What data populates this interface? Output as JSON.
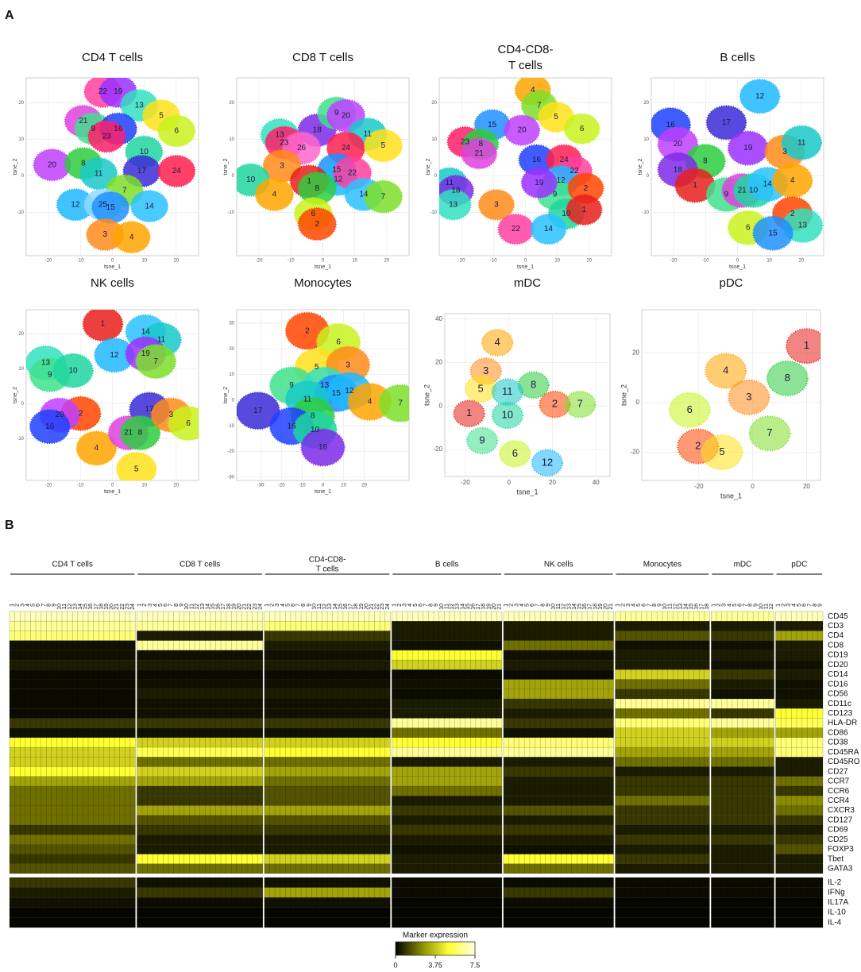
{
  "panel_labels": [
    "A",
    "B"
  ],
  "chart_data": [
    {
      "type": "scatter",
      "title": [
        "CD4 T cells"
      ],
      "x_label": "tsne_1",
      "y_label": "tsne_2",
      "xlim": [
        -26,
        26
      ],
      "ylim": [
        -21,
        26
      ],
      "xticks": [
        -20,
        -10,
        0,
        10,
        20
      ],
      "yticks": [
        -10,
        0,
        10,
        20
      ],
      "point_labels": [
        22,
        19,
        13,
        5,
        6,
        21,
        9,
        16,
        23,
        20,
        8,
        10,
        11,
        17,
        24,
        7,
        12,
        25,
        15,
        14,
        3,
        4
      ],
      "x": [
        -3,
        1.8,
        8.4,
        15.3,
        20.1,
        -9.1,
        -6,
        1.8,
        -1.8,
        -18.9,
        -9.1,
        9.9,
        -4.3,
        9.2,
        20.1,
        3.8,
        -11.6,
        -3,
        -0.6,
        11.6,
        -2.3,
        6
      ],
      "values": [
        23.1,
        23.1,
        19.3,
        16.5,
        12.3,
        15,
        12.9,
        12.9,
        10.8,
        3,
        3.4,
        6.6,
        0.6,
        1.3,
        1.3,
        -4,
        -7.9,
        -7.9,
        -8.7,
        -8.3,
        -16.1,
        -16.8
      ]
    },
    {
      "type": "scatter",
      "title": [
        "CD8 T cells"
      ],
      "x_label": "tsne_1",
      "y_label": "tsne_2",
      "xlim": [
        -26,
        26
      ],
      "ylim": [
        -21,
        26
      ],
      "xticks": [
        -20,
        -10,
        0,
        10,
        20
      ],
      "yticks": [
        -10,
        0,
        10,
        20
      ],
      "point_labels": [
        18,
        9,
        20,
        11,
        13,
        23,
        26,
        24,
        5,
        3,
        15,
        12,
        22,
        10,
        1,
        8,
        4,
        14,
        7,
        6,
        2
      ],
      "x": [
        -1.8,
        4.3,
        7.2,
        14,
        -13.5,
        -12.1,
        -6.7,
        7.2,
        18.9,
        -12.8,
        4.3,
        4.8,
        9.2,
        -22.6,
        -4.3,
        -1.8,
        -15.2,
        12.8,
        18.9,
        -3,
        -1.8
      ],
      "values": [
        12.5,
        17.2,
        16.5,
        11.4,
        11.2,
        9.1,
        7.6,
        7.6,
        8.3,
        2.7,
        1.7,
        -0.9,
        0.8,
        -1.1,
        -1.5,
        -3.4,
        -5.1,
        -5.1,
        -5.7,
        -10.4,
        -13.2
      ]
    },
    {
      "type": "scatter",
      "title": [
        "CD4-CD8-",
        "T cells"
      ],
      "x_label": "tsne_1",
      "y_label": "tsne_2",
      "xlim": [
        -26,
        26
      ],
      "ylim": [
        -21,
        26
      ],
      "xticks": [
        -20,
        -10,
        0,
        10,
        20
      ],
      "yticks": [
        -10,
        0,
        10,
        20
      ],
      "point_labels": [
        4,
        7,
        5,
        6,
        15,
        20,
        23,
        8,
        21,
        16,
        24,
        22,
        12,
        11,
        18,
        9,
        2,
        19,
        13,
        3,
        10,
        1,
        22,
        14
      ],
      "x": [
        2.3,
        4.3,
        9.6,
        17.7,
        -10.4,
        -1.1,
        -18.9,
        -14,
        -14.5,
        3.5,
        12.1,
        15.3,
        11.1,
        -23.8,
        -21.8,
        9.2,
        18.9,
        4.3,
        -22.6,
        -9.1,
        12.8,
        18.4,
        -3,
        7.2
      ],
      "values": [
        23.5,
        19.3,
        16.1,
        12.9,
        14,
        12.5,
        9.3,
        8.7,
        6.1,
        4.4,
        4.4,
        1.3,
        -1.3,
        -1.9,
        -4,
        -5.1,
        -3.4,
        -1.9,
        -7.9,
        -7.9,
        -10.4,
        -9.3,
        -14.6,
        -14.6
      ]
    },
    {
      "type": "scatter",
      "title": [
        "B cells"
      ],
      "x_label": "tsne_1",
      "y_label": "tsne_2",
      "xlim": [
        -26,
        26
      ],
      "ylim": [
        -21,
        26
      ],
      "xticks": [
        -20,
        -10,
        0,
        10,
        20
      ],
      "yticks": [
        -10,
        0,
        10,
        20
      ],
      "point_labels": [
        12,
        16,
        17,
        19,
        3,
        11,
        20,
        8,
        18,
        1,
        9,
        21,
        10,
        14,
        4,
        6,
        2,
        13,
        15
      ],
      "x": [
        7,
        -21,
        -3.5,
        3.3,
        14.8,
        20.1,
        -18.7,
        -10.1,
        -18.7,
        -13.3,
        -3.5,
        1.4,
        5,
        9.4,
        17.2,
        3.3,
        17.2,
        20.4,
        11.1
      ],
      "values": [
        21.8,
        14,
        14.6,
        7.6,
        6.6,
        9.1,
        8.7,
        4,
        1.7,
        -2.6,
        -5.1,
        -4,
        -4,
        -2.3,
        -1.3,
        -14.2,
        -10.4,
        -13.6,
        -15.7
      ]
    },
    {
      "type": "scatter",
      "title": [
        "NK cells"
      ],
      "x_label": "tsne_1",
      "y_label": "tsne_2",
      "xlim": [
        -26,
        26
      ],
      "ylim": [
        -21,
        26
      ],
      "xticks": [
        -20,
        -10,
        0,
        10,
        20
      ],
      "yticks": [
        -10,
        0,
        10,
        20
      ],
      "point_labels": [
        1,
        14,
        11,
        12,
        19,
        7,
        13,
        9,
        10,
        2,
        17,
        20,
        16,
        4,
        21,
        8,
        3,
        6,
        5
      ],
      "x": [
        -3,
        10.4,
        15.3,
        0.6,
        10.4,
        13.6,
        -20.9,
        -19.6,
        -12.3,
        -9.9,
        11.6,
        -16.5,
        -19.6,
        -5,
        5,
        8.7,
        18.4,
        23.8,
        7.5
      ],
      "values": [
        22.8,
        20.6,
        18.3,
        13.9,
        14.3,
        12.1,
        11.7,
        8.3,
        9.5,
        -2.8,
        -1.6,
        -3.2,
        -6.5,
        -12.7,
        -8.3,
        -8.3,
        -3.2,
        -5.6,
        -18.7
      ]
    },
    {
      "type": "scatter",
      "title": [
        "Monocytes"
      ],
      "x_label": "tsne_1",
      "y_label": "tsne_2",
      "xlim": [
        -40,
        40
      ],
      "ylim": [
        -30,
        34
      ],
      "xticks": [
        -30,
        -20,
        -10,
        0,
        10,
        20
      ],
      "yticks": [
        -30,
        -20,
        -10,
        0,
        10,
        20,
        30
      ],
      "point_labels": [
        2,
        6,
        5,
        3,
        9,
        13,
        15,
        12,
        4,
        7,
        17,
        11,
        8,
        16,
        10,
        18
      ],
      "x": [
        -7.5,
        7.5,
        -3,
        12.1,
        -15.1,
        0.8,
        6.4,
        12.8,
        22.6,
        37.4,
        -31.3,
        -7.5,
        -4.9,
        -15.1,
        -3.8,
        0
      ],
      "values": [
        27,
        22.6,
        12.8,
        13.7,
        5.7,
        5.7,
        2.7,
        3.6,
        -0.6,
        -1.2,
        -4.1,
        0.3,
        -6.2,
        -10.1,
        -11.5,
        -18.4
      ]
    },
    {
      "type": "scatter",
      "title": [
        "mDC"
      ],
      "x_label": "tsne_1",
      "y_label": "tsne_2",
      "xlim": [
        -28,
        45
      ],
      "ylim": [
        -31,
        41
      ],
      "xticks": [
        -20,
        0,
        20,
        40
      ],
      "yticks": [
        -20,
        0,
        20,
        40
      ],
      "point_labels": [
        4,
        3,
        5,
        8,
        11,
        10,
        1,
        2,
        7,
        9,
        6,
        12
      ],
      "x": [
        -5.3,
        -10.6,
        -13,
        11.3,
        -0.7,
        -0.7,
        -18.3,
        21.1,
        32.7,
        -12.3,
        2.8,
        17.6
      ],
      "values": [
        29.1,
        16,
        7.8,
        9.6,
        6.4,
        -4.3,
        -3.5,
        0.7,
        0.7,
        -16,
        -22,
        -26.2
      ]
    },
    {
      "type": "scatter",
      "title": [
        "pDC"
      ],
      "x_label": "tsne_1",
      "y_label": "tsne_2",
      "xlim": [
        -40,
        24
      ],
      "ylim": [
        -30,
        36
      ],
      "xticks": [
        -20,
        0,
        20
      ],
      "yticks": [
        -20,
        0,
        20
      ],
      "point_labels": [
        1,
        8,
        4,
        3,
        6,
        7,
        2,
        5
      ],
      "x": [
        20,
        12.9,
        -10,
        -1.4,
        -23.4,
        6.3,
        -20.3,
        -11.4
      ],
      "values": [
        22.7,
        9.7,
        12.7,
        2.1,
        -3,
        -12.4,
        -17.6,
        -20
      ]
    },
    {
      "type": "heatmap",
      "groups": [
        {
          "name": [
            "CD4 T cells"
          ],
          "columns": [
            1,
            2,
            3,
            4,
            5,
            6,
            7,
            8,
            9,
            10,
            11,
            12,
            13,
            14,
            15,
            16,
            17,
            18,
            19,
            20,
            21,
            22,
            23,
            24
          ]
        },
        {
          "name": [
            "CD8 T cells"
          ],
          "columns": [
            1,
            2,
            3,
            4,
            5,
            6,
            7,
            8,
            9,
            10,
            11,
            12,
            13,
            14,
            15,
            16,
            17,
            18,
            19,
            20,
            21,
            22,
            23,
            24
          ]
        },
        {
          "name": [
            "CD4-CD8-",
            "T cells"
          ],
          "columns": [
            1,
            2,
            3,
            4,
            5,
            6,
            7,
            8,
            9,
            10,
            11,
            12,
            13,
            14,
            15,
            16,
            17,
            18,
            19,
            20,
            21,
            22,
            23,
            24
          ]
        },
        {
          "name": [
            "B cells"
          ],
          "columns": [
            1,
            2,
            3,
            4,
            5,
            6,
            7,
            8,
            9,
            10,
            11,
            12,
            13,
            14,
            15,
            16,
            17,
            18,
            19,
            20,
            21
          ]
        },
        {
          "name": [
            "NK cells"
          ],
          "columns": [
            1,
            2,
            3,
            4,
            5,
            6,
            7,
            8,
            9,
            10,
            11,
            12,
            13,
            14,
            15,
            16,
            17,
            18,
            19,
            20,
            21
          ]
        },
        {
          "name": [
            "Monocytes"
          ],
          "columns": [
            1,
            2,
            3,
            4,
            5,
            6,
            7,
            8,
            9,
            10,
            11,
            12,
            13,
            14,
            15,
            16,
            17,
            18
          ]
        },
        {
          "name": [
            "mDC"
          ],
          "columns": [
            1,
            2,
            3,
            4,
            5,
            6,
            7,
            8,
            9,
            10,
            11,
            12
          ]
        },
        {
          "name": [
            "pDC"
          ],
          "columns": [
            1,
            2,
            3,
            4,
            5,
            6,
            7,
            8,
            9
          ]
        }
      ],
      "sections": [
        {
          "rows": [
            "CD45",
            "CD3",
            "CD4",
            "CD8",
            "CD19",
            "CD20",
            "CD14",
            "CD16",
            "CD56",
            "CD11c",
            "CD123",
            "HLA-DR",
            "CD86",
            "CD38",
            "CD45RA",
            "CD45RO",
            "CD27",
            "CCR7",
            "CCR6",
            "CCR4",
            "CXCR3",
            "CD127",
            "CD69",
            "CD25",
            "FOXP3",
            "Tbet",
            "GATA3"
          ],
          "values": [
            [
              7,
              7,
              7,
              7,
              7,
              6.5,
              6.5,
              7
            ],
            [
              6.5,
              6.5,
              6,
              0.5,
              0.5,
              0.5,
              0.5,
              0.5
            ],
            [
              6,
              0.5,
              1,
              0.5,
              0.5,
              1.5,
              1,
              3
            ],
            [
              0.3,
              6.5,
              0.5,
              0.3,
              2,
              0.3,
              0.3,
              0.5
            ],
            [
              0.3,
              0.3,
              0.3,
              5,
              0.3,
              0.5,
              0.5,
              0.5
            ],
            [
              0.5,
              0.5,
              0.5,
              4,
              0.5,
              0.5,
              0.3,
              0.3
            ],
            [
              0.2,
              0.2,
              0.2,
              0.2,
              0.2,
              4,
              1,
              0.5
            ],
            [
              0.2,
              0.3,
              0.3,
              0.3,
              3,
              2,
              0.5,
              0.3
            ],
            [
              0.2,
              0.5,
              0.5,
              0.2,
              3,
              1,
              0.3,
              0.3
            ],
            [
              0.2,
              0.3,
              0.3,
              0.5,
              1,
              6.5,
              6.5,
              0.5
            ],
            [
              0.2,
              0.3,
              0.3,
              0.5,
              0.5,
              2,
              1,
              5
            ],
            [
              1,
              1,
              1,
              6.5,
              1,
              6,
              6.5,
              5.5
            ],
            [
              0.3,
              0.3,
              0.3,
              2,
              0.3,
              4,
              3,
              3
            ],
            [
              5,
              4,
              4,
              5,
              6,
              4,
              4,
              6
            ],
            [
              4,
              5.5,
              5,
              6.5,
              6.5,
              3,
              3,
              6
            ],
            [
              4,
              2,
              2,
              0.5,
              0.5,
              2,
              2,
              0.5
            ],
            [
              5,
              4,
              3,
              3,
              1,
              0.5,
              0.5,
              0.5
            ],
            [
              3,
              3,
              2,
              3,
              0.5,
              1,
              1,
              2
            ],
            [
              2,
              1,
              1.5,
              2,
              0.5,
              1,
              1,
              1
            ],
            [
              2,
              1,
              1.5,
              0.5,
              0.5,
              2,
              1,
              2.5
            ],
            [
              2,
              3,
              3,
              1,
              1.5,
              1,
              1,
              2
            ],
            [
              2,
              1.5,
              1.5,
              0.5,
              0.5,
              1,
              1,
              1
            ],
            [
              1,
              1,
              1,
              1,
              1,
              0.5,
              0.5,
              0.5
            ],
            [
              2,
              0.5,
              0.5,
              0.5,
              0.5,
              1,
              1,
              1
            ],
            [
              1.5,
              0.5,
              0.5,
              0.3,
              0.3,
              0.5,
              0.5,
              1.5
            ],
            [
              1,
              5,
              4,
              0.5,
              5,
              1,
              0.5,
              0.5
            ],
            [
              1.5,
              2,
              2,
              0.5,
              2,
              0.5,
              0.5,
              0.5
            ]
          ]
        },
        {
          "rows": [
            "IL-2",
            "IFNg",
            "IL17A",
            "IL-10",
            "IL-4"
          ],
          "values": [
            [
              1,
              0.3,
              0.3,
              0.2,
              0.2,
              0.2,
              0.2,
              0.2
            ],
            [
              0.5,
              1,
              3,
              0.2,
              1,
              0.2,
              0.2,
              0.2
            ],
            [
              0.3,
              0.2,
              0.3,
              0.1,
              0.2,
              0.1,
              0.1,
              0.1
            ],
            [
              0.1,
              0.1,
              0.1,
              0.1,
              0.1,
              0.1,
              0.1,
              0.1
            ],
            [
              0.1,
              0.1,
              0.1,
              0.1,
              0.1,
              0.1,
              0.1,
              0.1
            ]
          ]
        }
      ],
      "color_range": [
        0,
        7.5
      ],
      "colors": [
        "#000000",
        "#8c8c00",
        "#ffff33",
        "#ffffdd"
      ],
      "legend": {
        "title": "Marker expression",
        "ticks": [
          0,
          3.75,
          7.5
        ]
      }
    }
  ],
  "palette": [
    "#e8201c",
    "#ff4500",
    "#ff8c1a",
    "#ffa500",
    "#ffe11a",
    "#c9f21f",
    "#7ddf2a",
    "#2ecc40",
    "#3fe08c",
    "#1fd6a0",
    "#19c9c9",
    "#1fb8ff",
    "#33e0c0",
    "#2ac2ff",
    "#1e90ff",
    "#2040ff",
    "#3a2ad6",
    "#7d2ae8",
    "#9b30ff",
    "#c040ff",
    "#e040e0",
    "#ff3fa0",
    "#ff1f6a",
    "#ff2050",
    "#8fd9ff",
    "#ff66cc"
  ]
}
